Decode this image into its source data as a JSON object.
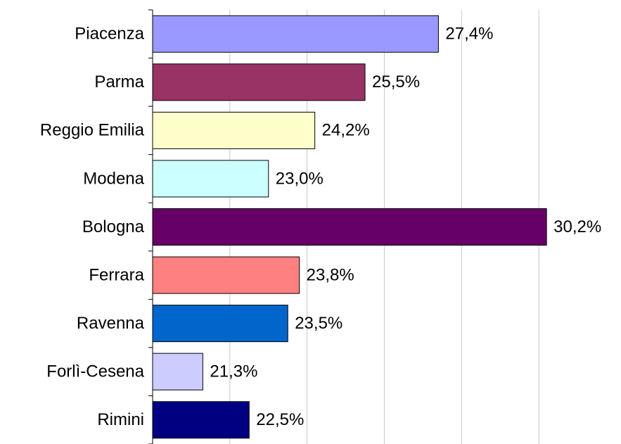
{
  "chart_data": {
    "type": "hbar",
    "categories": [
      "Piacenza",
      "Parma",
      "Reggio Emilia",
      "Modena",
      "Bologna",
      "Ferrara",
      "Ravenna",
      "Forlì-Cesena",
      "Rimini"
    ],
    "values": [
      27.4,
      25.5,
      24.2,
      23.0,
      30.2,
      23.8,
      23.5,
      21.3,
      22.5
    ],
    "value_labels": [
      "27,4%",
      "25,5%",
      "24,2%",
      "23,0%",
      "30,2%",
      "23,8%",
      "23,5%",
      "21,3%",
      "22,5%"
    ],
    "colors": [
      "#9999ff",
      "#993366",
      "#ffffcc",
      "#ccffff",
      "#660066",
      "#ff8080",
      "#0066cc",
      "#ccccff",
      "#000080"
    ],
    "xlim": [
      20,
      32
    ],
    "xticks": [
      20,
      22,
      24,
      26,
      28,
      30
    ],
    "grid": true
  }
}
